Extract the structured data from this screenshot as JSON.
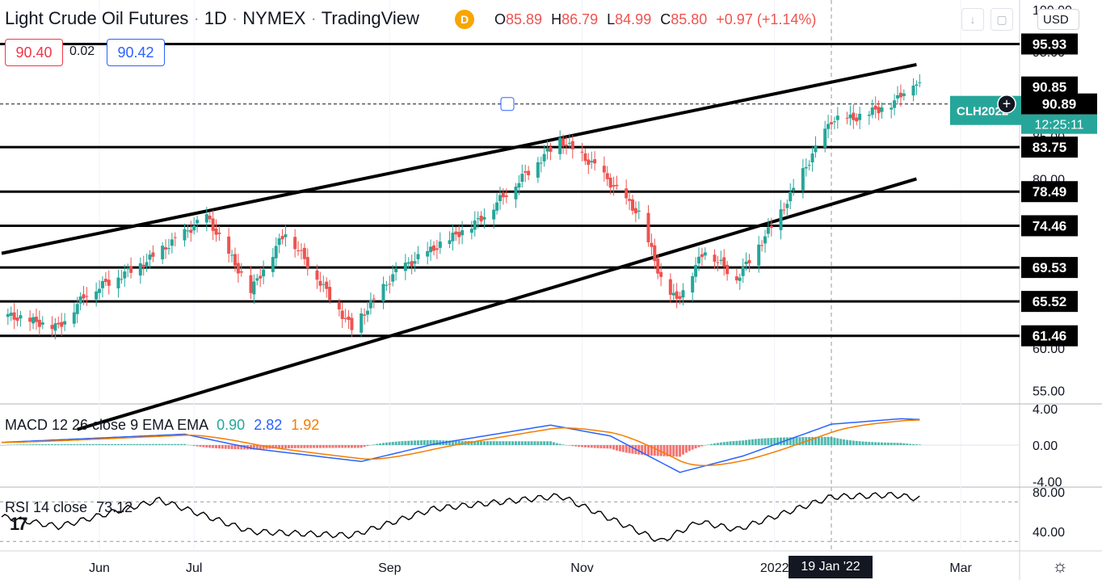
{
  "header": {
    "title": "Light Crude Oil Futures",
    "interval": "1D",
    "exchange": "NYMEX",
    "source": "TradingView",
    "badge": "D"
  },
  "ohlc": {
    "o_label": "O",
    "o": "85.89",
    "h_label": "H",
    "h": "86.79",
    "l_label": "L",
    "l": "84.99",
    "c_label": "C",
    "c": "85.80",
    "change": "+0.97 (+1.14%)"
  },
  "quote": {
    "bid": "90.40",
    "spread": "0.02",
    "ask": "90.42"
  },
  "currency": "USD",
  "colors": {
    "up": "#26a69a",
    "down": "#ef5350",
    "macd": "#2962ff",
    "signal": "#f57c00",
    "accent": "#2962ff",
    "bid": "#f23645"
  },
  "icons": {
    "download": "download-icon",
    "fullscreen": "fullscreen-icon",
    "settings": "gear-icon",
    "logo": "tradingview-logo"
  },
  "crosshair_date": "19 Jan '22",
  "price_tags": {
    "current": "90.89",
    "countdown": "12:25:11",
    "symbol": "CLH2022"
  },
  "chart_data": [
    {
      "type": "candlestick",
      "title": "Light Crude Oil Futures · 1D · NYMEX",
      "ylim": [
        50,
        100
      ],
      "y_ticks": [
        "100.00",
        "95.00",
        "90.00",
        "85.00",
        "80.00",
        "75.00",
        "70.00",
        "65.00",
        "60.00",
        "55.00"
      ],
      "x_ticks": [
        "Jun",
        "Jul",
        "Sep",
        "Nov",
        "2022",
        "Mar"
      ],
      "horizontal_levels": [
        95.93,
        90.85,
        83.75,
        78.49,
        74.46,
        69.53,
        65.52,
        61.46
      ],
      "horizontal_level_labels": [
        "95.93",
        "90.85",
        "83.75",
        "78.49",
        "74.46",
        "69.53",
        "65.52",
        "61.46"
      ],
      "channel_upper": [
        {
          "x": "2021-05-01",
          "y": 71.2
        },
        {
          "x": "2022-02-15",
          "y": 93.5
        }
      ],
      "channel_lower": [
        {
          "x": "2021-05-25",
          "y": 50.4
        },
        {
          "x": "2022-02-15",
          "y": 80.0
        }
      ],
      "anchors": [
        {
          "x": "2021-05-01",
          "y": 64.0
        },
        {
          "x": "2021-05-19",
          "y": 62.5
        },
        {
          "x": "2021-05-28",
          "y": 66.5
        },
        {
          "x": "2021-06-15",
          "y": 70.0
        },
        {
          "x": "2021-07-05",
          "y": 75.5
        },
        {
          "x": "2021-07-19",
          "y": 66.8
        },
        {
          "x": "2021-07-30",
          "y": 73.8
        },
        {
          "x": "2021-08-20",
          "y": 62.3
        },
        {
          "x": "2021-09-03",
          "y": 69.0
        },
        {
          "x": "2021-09-29",
          "y": 75.0
        },
        {
          "x": "2021-10-25",
          "y": 84.6
        },
        {
          "x": "2021-11-05",
          "y": 81.5
        },
        {
          "x": "2021-11-19",
          "y": 75.8
        },
        {
          "x": "2021-11-26",
          "y": 68.2
        },
        {
          "x": "2021-12-01",
          "y": 65.6
        },
        {
          "x": "2021-12-10",
          "y": 71.7
        },
        {
          "x": "2021-12-20",
          "y": 68.2
        },
        {
          "x": "2022-01-03",
          "y": 76.0
        },
        {
          "x": "2022-01-19",
          "y": 86.9
        },
        {
          "x": "2022-01-27",
          "y": 87.2
        },
        {
          "x": "2022-02-08",
          "y": 89.0
        },
        {
          "x": "2022-02-10",
          "y": 90.0
        },
        {
          "x": "2022-02-14",
          "y": 91.5
        },
        {
          "x": "2022-02-16",
          "y": 90.89
        }
      ]
    },
    {
      "type": "line",
      "title": "MACD 12 26 close 9 EMA EMA",
      "values_shown": [
        "0.90",
        "2.82",
        "1.92"
      ],
      "ylim": [
        -4,
        4
      ],
      "y_ticks": [
        "4.00",
        "0.00",
        "-4.00"
      ],
      "anchors": [
        {
          "x": "2021-05-01",
          "y": 0.3
        },
        {
          "x": "2021-06-28",
          "y": 1.2
        },
        {
          "x": "2021-07-20",
          "y": -0.4
        },
        {
          "x": "2021-08-23",
          "y": -1.8
        },
        {
          "x": "2021-09-15",
          "y": 0.1
        },
        {
          "x": "2021-10-22",
          "y": 2.2
        },
        {
          "x": "2021-11-10",
          "y": 1.0
        },
        {
          "x": "2021-12-02",
          "y": -3.0
        },
        {
          "x": "2021-12-22",
          "y": -1.2
        },
        {
          "x": "2022-01-19",
          "y": 2.3
        },
        {
          "x": "2022-02-10",
          "y": 2.9
        },
        {
          "x": "2022-02-16",
          "y": 2.82
        }
      ]
    },
    {
      "type": "line",
      "title": "RSI 14 close",
      "values_shown": [
        "73.12"
      ],
      "ylim": [
        20,
        90
      ],
      "y_ticks": [
        "80.00",
        "40.00"
      ],
      "anchors": [
        {
          "x": "2021-05-01",
          "y": 55
        },
        {
          "x": "2021-05-19",
          "y": 45
        },
        {
          "x": "2021-06-20",
          "y": 72
        },
        {
          "x": "2021-07-19",
          "y": 40
        },
        {
          "x": "2021-08-20",
          "y": 36
        },
        {
          "x": "2021-09-15",
          "y": 63
        },
        {
          "x": "2021-10-25",
          "y": 76
        },
        {
          "x": "2021-11-26",
          "y": 30
        },
        {
          "x": "2021-12-08",
          "y": 50
        },
        {
          "x": "2021-12-20",
          "y": 42
        },
        {
          "x": "2022-01-19",
          "y": 75
        },
        {
          "x": "2022-02-08",
          "y": 77
        },
        {
          "x": "2022-02-16",
          "y": 73.12
        }
      ]
    }
  ]
}
